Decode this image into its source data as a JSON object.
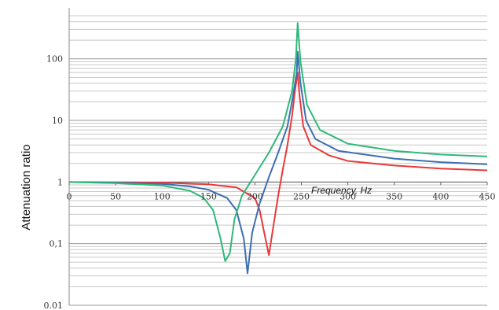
{
  "chart_data": {
    "type": "line",
    "title": "",
    "xlabel": "Frequency, Hz",
    "ylabel": "Attenuation ratio",
    "xlim": [
      0,
      450
    ],
    "ylim": [
      0.01,
      500
    ],
    "yscale": "log",
    "grid": true,
    "x_ticks": [
      "0",
      "50",
      "100",
      "150",
      "200",
      "250",
      "300",
      "350",
      "400",
      "450"
    ],
    "y_ticks": [
      {
        "value": 100,
        "label": "100"
      },
      {
        "value": 10,
        "label": "10"
      },
      {
        "value": 1,
        "label": "1"
      },
      {
        "value": 0.1,
        "label": "0,1"
      },
      {
        "value": 0.01,
        "label": "0.01"
      }
    ],
    "series": [
      {
        "color": "#e8393a",
        "points": [
          [
            0,
            1
          ],
          [
            50,
            0.99
          ],
          [
            100,
            0.98
          ],
          [
            150,
            0.92
          ],
          [
            180,
            0.82
          ],
          [
            200,
            0.55
          ],
          [
            205,
            0.35
          ],
          [
            210,
            0.15
          ],
          [
            215,
            0.065
          ],
          [
            220,
            0.2
          ],
          [
            225,
            0.6
          ],
          [
            230,
            1.6
          ],
          [
            235,
            4
          ],
          [
            240,
            12
          ],
          [
            243,
            30
          ],
          [
            246,
            60
          ],
          [
            248,
            25
          ],
          [
            252,
            8
          ],
          [
            260,
            4
          ],
          [
            280,
            2.7
          ],
          [
            300,
            2.2
          ],
          [
            350,
            1.85
          ],
          [
            400,
            1.65
          ],
          [
            450,
            1.55
          ]
        ]
      },
      {
        "color": "#3d6fb0",
        "points": [
          [
            0,
            1
          ],
          [
            50,
            0.98
          ],
          [
            100,
            0.93
          ],
          [
            130,
            0.85
          ],
          [
            150,
            0.75
          ],
          [
            170,
            0.55
          ],
          [
            180,
            0.35
          ],
          [
            188,
            0.12
          ],
          [
            192,
            0.033
          ],
          [
            197,
            0.15
          ],
          [
            205,
            0.45
          ],
          [
            215,
            1.2
          ],
          [
            225,
            3
          ],
          [
            235,
            8
          ],
          [
            241,
            25
          ],
          [
            245,
            60
          ],
          [
            246,
            130
          ],
          [
            249,
            40
          ],
          [
            255,
            10
          ],
          [
            265,
            5
          ],
          [
            290,
            3.2
          ],
          [
            350,
            2.4
          ],
          [
            400,
            2.1
          ],
          [
            450,
            1.95
          ]
        ]
      },
      {
        "color": "#2fb87a",
        "points": [
          [
            0,
            1
          ],
          [
            50,
            0.96
          ],
          [
            100,
            0.88
          ],
          [
            130,
            0.72
          ],
          [
            145,
            0.55
          ],
          [
            155,
            0.35
          ],
          [
            163,
            0.12
          ],
          [
            168,
            0.052
          ],
          [
            173,
            0.07
          ],
          [
            178,
            0.25
          ],
          [
            186,
            0.6
          ],
          [
            200,
            1.3
          ],
          [
            215,
            3
          ],
          [
            230,
            8
          ],
          [
            240,
            30
          ],
          [
            244,
            100
          ],
          [
            246,
            380
          ],
          [
            249,
            90
          ],
          [
            256,
            18
          ],
          [
            270,
            7
          ],
          [
            300,
            4.2
          ],
          [
            350,
            3.2
          ],
          [
            400,
            2.8
          ],
          [
            450,
            2.6
          ]
        ]
      }
    ]
  }
}
